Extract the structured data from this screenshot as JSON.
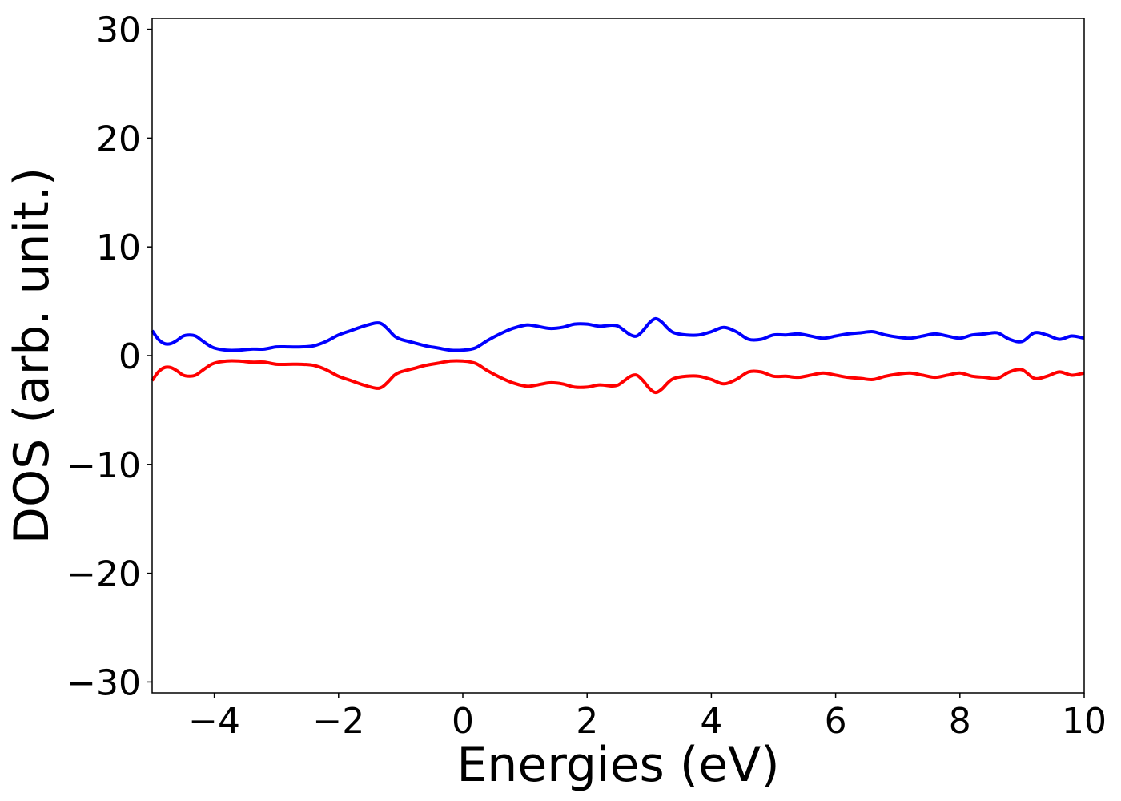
{
  "chart_data": {
    "type": "line",
    "title": "",
    "xlabel": "Energies (eV)",
    "ylabel": "DOS (arb. unit.)",
    "xlim": [
      -5,
      10
    ],
    "ylim": [
      -31,
      31
    ],
    "xticks": [
      -4,
      -2,
      0,
      2,
      4,
      6,
      8,
      10
    ],
    "xtick_labels": [
      "−4",
      "−2",
      "0",
      "2",
      "4",
      "6",
      "8",
      "10"
    ],
    "yticks": [
      -30,
      -20,
      -10,
      0,
      10,
      20,
      30
    ],
    "ytick_labels": [
      "−30",
      "−20",
      "−10",
      "0",
      "10",
      "20",
      "30"
    ],
    "grid": false,
    "legend": "none",
    "colors": {
      "spin_up": "#0000ff",
      "spin_down": "#ff0000",
      "axes": "#000000",
      "background": "#ffffff"
    },
    "series": [
      {
        "color": "#0000ff",
        "x": [
          -5.0,
          -4.9,
          -4.8,
          -4.7,
          -4.6,
          -4.5,
          -4.4,
          -4.3,
          -4.2,
          -4.1,
          -4.0,
          -3.8,
          -3.6,
          -3.4,
          -3.2,
          -3.0,
          -2.8,
          -2.6,
          -2.4,
          -2.2,
          -2.0,
          -1.8,
          -1.6,
          -1.4,
          -1.3,
          -1.2,
          -1.1,
          -1.0,
          -0.8,
          -0.6,
          -0.4,
          -0.2,
          0.0,
          0.2,
          0.4,
          0.6,
          0.8,
          1.0,
          1.1,
          1.2,
          1.4,
          1.6,
          1.8,
          2.0,
          2.2,
          2.4,
          2.5,
          2.6,
          2.7,
          2.8,
          2.9,
          3.0,
          3.1,
          3.2,
          3.3,
          3.4,
          3.6,
          3.8,
          4.0,
          4.2,
          4.4,
          4.6,
          4.8,
          5.0,
          5.2,
          5.4,
          5.6,
          5.8,
          6.0,
          6.2,
          6.4,
          6.6,
          6.8,
          7.0,
          7.2,
          7.4,
          7.6,
          7.8,
          8.0,
          8.2,
          8.4,
          8.6,
          8.8,
          9.0,
          9.2,
          9.4,
          9.6,
          9.8,
          10.0
        ],
        "y": [
          2.3,
          1.5,
          1.1,
          1.1,
          1.4,
          1.8,
          1.9,
          1.8,
          1.4,
          1.0,
          0.7,
          0.5,
          0.5,
          0.6,
          0.6,
          0.8,
          0.8,
          0.8,
          0.9,
          1.3,
          1.9,
          2.3,
          2.7,
          3.0,
          2.9,
          2.4,
          1.8,
          1.5,
          1.2,
          0.9,
          0.7,
          0.5,
          0.5,
          0.7,
          1.4,
          2.0,
          2.5,
          2.8,
          2.8,
          2.7,
          2.5,
          2.6,
          2.9,
          2.9,
          2.7,
          2.8,
          2.7,
          2.3,
          1.9,
          1.8,
          2.3,
          3.0,
          3.4,
          3.1,
          2.5,
          2.1,
          1.9,
          1.9,
          2.2,
          2.6,
          2.2,
          1.5,
          1.5,
          1.9,
          1.9,
          2.0,
          1.8,
          1.6,
          1.8,
          2.0,
          2.1,
          2.2,
          1.9,
          1.7,
          1.6,
          1.8,
          2.0,
          1.8,
          1.6,
          1.9,
          2.0,
          2.1,
          1.5,
          1.3,
          2.1,
          1.9,
          1.5,
          1.8,
          1.6
        ]
      },
      {
        "color": "#ff0000",
        "x": [
          -5.0,
          -4.9,
          -4.8,
          -4.7,
          -4.6,
          -4.5,
          -4.4,
          -4.3,
          -4.2,
          -4.1,
          -4.0,
          -3.8,
          -3.6,
          -3.4,
          -3.2,
          -3.0,
          -2.8,
          -2.6,
          -2.4,
          -2.2,
          -2.0,
          -1.8,
          -1.6,
          -1.4,
          -1.3,
          -1.2,
          -1.1,
          -1.0,
          -0.8,
          -0.6,
          -0.4,
          -0.2,
          0.0,
          0.2,
          0.4,
          0.6,
          0.8,
          1.0,
          1.1,
          1.2,
          1.4,
          1.6,
          1.8,
          2.0,
          2.2,
          2.4,
          2.5,
          2.6,
          2.7,
          2.8,
          2.9,
          3.0,
          3.1,
          3.2,
          3.3,
          3.4,
          3.6,
          3.8,
          4.0,
          4.2,
          4.4,
          4.6,
          4.8,
          5.0,
          5.2,
          5.4,
          5.6,
          5.8,
          6.0,
          6.2,
          6.4,
          6.6,
          6.8,
          7.0,
          7.2,
          7.4,
          7.6,
          7.8,
          8.0,
          8.2,
          8.4,
          8.6,
          8.8,
          9.0,
          9.2,
          9.4,
          9.6,
          9.8,
          10.0
        ],
        "y": [
          -2.3,
          -1.5,
          -1.1,
          -1.1,
          -1.4,
          -1.8,
          -1.9,
          -1.8,
          -1.4,
          -1.0,
          -0.7,
          -0.5,
          -0.5,
          -0.6,
          -0.6,
          -0.8,
          -0.8,
          -0.8,
          -0.9,
          -1.3,
          -1.9,
          -2.3,
          -2.7,
          -3.0,
          -2.9,
          -2.4,
          -1.8,
          -1.5,
          -1.2,
          -0.9,
          -0.7,
          -0.5,
          -0.5,
          -0.7,
          -1.4,
          -2.0,
          -2.5,
          -2.8,
          -2.8,
          -2.7,
          -2.5,
          -2.6,
          -2.9,
          -2.9,
          -2.7,
          -2.8,
          -2.7,
          -2.3,
          -1.9,
          -1.8,
          -2.3,
          -3.0,
          -3.4,
          -3.1,
          -2.5,
          -2.1,
          -1.9,
          -1.9,
          -2.2,
          -2.6,
          -2.2,
          -1.5,
          -1.5,
          -1.9,
          -1.9,
          -2.0,
          -1.8,
          -1.6,
          -1.8,
          -2.0,
          -2.1,
          -2.2,
          -1.9,
          -1.7,
          -1.6,
          -1.8,
          -2.0,
          -1.8,
          -1.6,
          -1.9,
          -2.0,
          -2.1,
          -1.5,
          -1.3,
          -2.1,
          -1.9,
          -1.5,
          -1.8,
          -1.6
        ]
      }
    ]
  }
}
